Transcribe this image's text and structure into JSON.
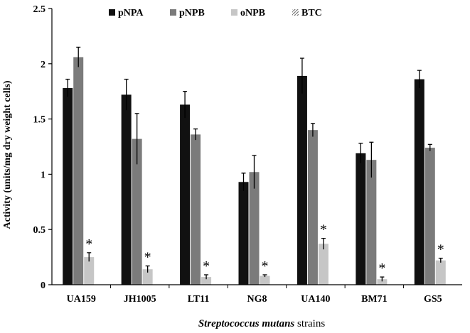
{
  "chart_data": {
    "type": "bar",
    "title": "",
    "ylabel": "Activity (units/mg dry weight cells)",
    "xlabel_italic": "Streptococcus mutans",
    "xlabel_rest": " strains",
    "ylim": [
      0,
      2.5
    ],
    "yticks": [
      "0",
      "0.5",
      "1",
      "1.5",
      "2",
      "2.5"
    ],
    "legend_position": "top-center",
    "categories": [
      "UA159",
      "JH1005",
      "LT11",
      "NG8",
      "UA140",
      "BM71",
      "GS5"
    ],
    "series": [
      {
        "name": "pNPA",
        "color": "#111111",
        "values": [
          1.78,
          1.72,
          1.63,
          0.93,
          1.89,
          1.19,
          1.86
        ],
        "errors": [
          0.08,
          0.14,
          0.12,
          0.08,
          0.16,
          0.09,
          0.08
        ]
      },
      {
        "name": "pNPB",
        "color": "#7b7b7b",
        "values": [
          2.06,
          1.32,
          1.36,
          1.02,
          1.4,
          1.13,
          1.24
        ],
        "errors": [
          0.09,
          0.23,
          0.05,
          0.15,
          0.06,
          0.16,
          0.03
        ]
      },
      {
        "name": "oNPB",
        "color": "#c6c6c6",
        "values": [
          0.25,
          0.14,
          0.07,
          0.08,
          0.37,
          0.05,
          0.22
        ],
        "errors": [
          0.04,
          0.03,
          0.02,
          0.01,
          0.05,
          0.02,
          0.02
        ]
      },
      {
        "name": "BTC",
        "color": "#9a9a9a",
        "pattern": "hatch",
        "values": [
          0,
          0,
          0,
          0,
          0,
          0,
          0
        ]
      }
    ],
    "annotations": [
      "*",
      "*",
      "*",
      "*",
      "*",
      "*",
      "*"
    ]
  }
}
